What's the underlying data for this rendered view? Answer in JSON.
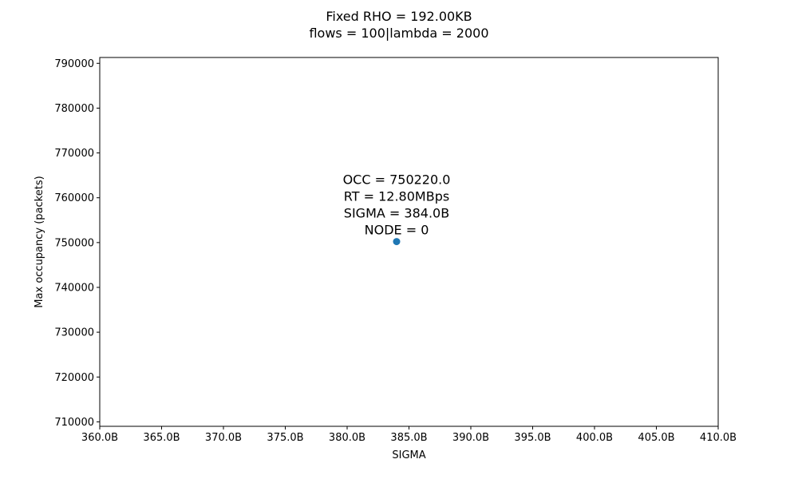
{
  "chart_data": {
    "type": "scatter",
    "title_lines": [
      "Fixed RHO = 192.00KB",
      "flows = 100|lambda = 2000"
    ],
    "xlabel": "SIGMA",
    "ylabel": "Max occupancy (packets)",
    "xlim": [
      360,
      410
    ],
    "ylim": [
      709000,
      791300
    ],
    "x_ticks": [
      360,
      365,
      370,
      375,
      380,
      385,
      390,
      395,
      400,
      405,
      410
    ],
    "x_tick_labels": [
      "360.0B",
      "365.0B",
      "370.0B",
      "375.0B",
      "380.0B",
      "385.0B",
      "390.0B",
      "395.0B",
      "400.0B",
      "405.0B",
      "410.0B"
    ],
    "y_ticks": [
      710000,
      720000,
      730000,
      740000,
      750000,
      760000,
      770000,
      780000,
      790000
    ],
    "y_tick_labels": [
      "710000",
      "720000",
      "730000",
      "740000",
      "750000",
      "760000",
      "770000",
      "780000",
      "790000"
    ],
    "points": [
      {
        "x": 384,
        "y": 750220,
        "color": "#1f77b4",
        "annotation": [
          "OCC = 750220.0",
          "RT = 12.80MBps",
          "SIGMA = 384.0B",
          "NODE = 0"
        ]
      }
    ],
    "grid": false,
    "legend": "none"
  }
}
